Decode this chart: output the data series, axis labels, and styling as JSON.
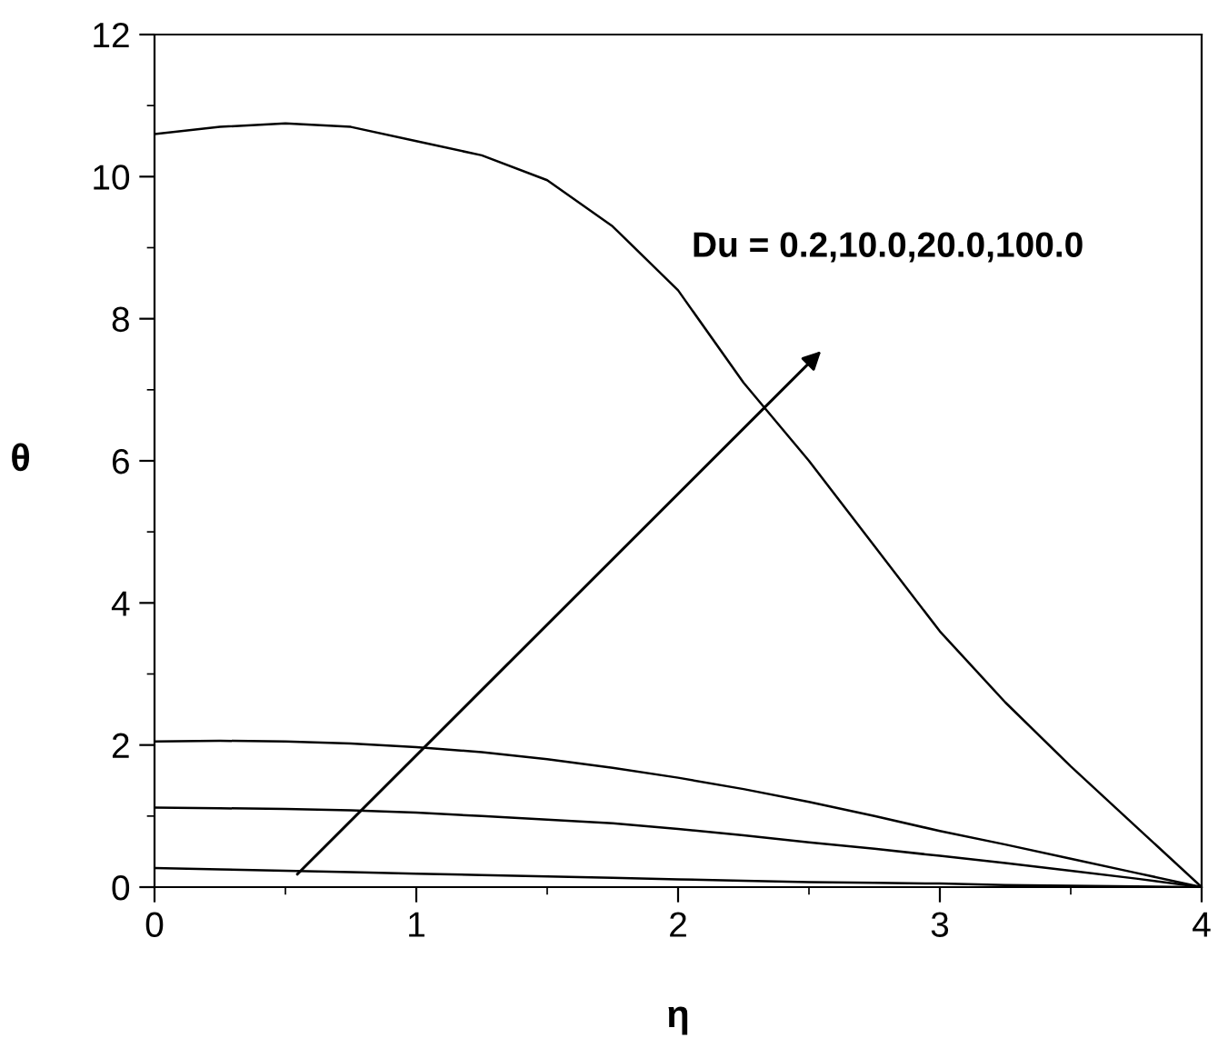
{
  "chart_data": {
    "type": "line",
    "xlabel": "η",
    "ylabel": "θ",
    "x": [
      0,
      0.25,
      0.5,
      0.75,
      1,
      1.25,
      1.5,
      1.75,
      2,
      2.25,
      2.5,
      2.75,
      3,
      3.25,
      3.5,
      3.75,
      4
    ],
    "series": [
      {
        "color": "#000000",
        "values": [
          10.6,
          10.7,
          10.75,
          10.7,
          10.5,
          10.3,
          9.95,
          9.3,
          8.4,
          7.1,
          6.0,
          4.8,
          3.6,
          2.6,
          1.7,
          0.85,
          0
        ]
      },
      {
        "color": "#000000",
        "values": [
          2.05,
          2.06,
          2.05,
          2.02,
          1.97,
          1.9,
          1.8,
          1.68,
          1.54,
          1.38,
          1.2,
          1.0,
          0.79,
          0.6,
          0.4,
          0.2,
          0
        ]
      },
      {
        "color": "#000000",
        "values": [
          1.12,
          1.11,
          1.1,
          1.08,
          1.05,
          1.0,
          0.95,
          0.9,
          0.82,
          0.73,
          0.63,
          0.54,
          0.44,
          0.34,
          0.23,
          0.12,
          0
        ]
      },
      {
        "color": "#000000",
        "values": [
          0.27,
          0.25,
          0.23,
          0.21,
          0.19,
          0.17,
          0.15,
          0.13,
          0.11,
          0.09,
          0.07,
          0.06,
          0.05,
          0.03,
          0.02,
          0.01,
          0
        ]
      }
    ],
    "annotations": [
      "Du = 0.2,10.0,20.0,100.0"
    ],
    "xlim": [
      0,
      4
    ],
    "ylim": [
      0,
      12
    ],
    "xticks": [
      0,
      1,
      2,
      3,
      4
    ],
    "yticks": [
      0,
      2,
      4,
      6,
      8,
      10,
      12
    ],
    "grid": false,
    "legend": false,
    "marker": "none",
    "line_style": "solid"
  }
}
